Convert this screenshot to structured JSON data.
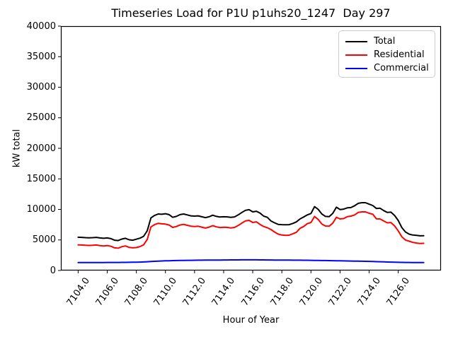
{
  "chart_data": {
    "type": "line",
    "title": "Timeseries Load for P1U p1uhs20_1247  Day 297",
    "xlabel": "Hour of Year",
    "ylabel": "kW total",
    "ylim": [
      0,
      40000
    ],
    "xlim": [
      7102.8125,
      7128.9375
    ],
    "grid": false,
    "legend_position": "upper right",
    "x_start": 7104.0,
    "x_step": 0.25,
    "x_ticks": [
      "7104.0",
      "7106.0",
      "7108.0",
      "7110.0",
      "7112.0",
      "7114.0",
      "7116.0",
      "7118.0",
      "7120.0",
      "7122.0",
      "7124.0",
      "7126.0"
    ],
    "x_tick_values": [
      7104,
      7106,
      7108,
      7110,
      7112,
      7114,
      7116,
      7118,
      7120,
      7122,
      7124,
      7126
    ],
    "y_ticks": [
      "0",
      "5000",
      "10000",
      "15000",
      "20000",
      "25000",
      "30000",
      "35000",
      "40000"
    ],
    "y_tick_values": [
      0,
      5000,
      10000,
      15000,
      20000,
      25000,
      30000,
      35000,
      40000
    ],
    "series": [
      {
        "name": "Total",
        "color": "#000000",
        "values": [
          5450,
          5420,
          5380,
          5350,
          5380,
          5420,
          5330,
          5270,
          5330,
          5210,
          4960,
          4900,
          5150,
          5270,
          5030,
          4960,
          5120,
          5300,
          5600,
          6500,
          8600,
          9000,
          9250,
          9200,
          9300,
          9150,
          8700,
          8850,
          9150,
          9250,
          9100,
          8950,
          8900,
          8950,
          8800,
          8650,
          8800,
          9050,
          8850,
          8750,
          8800,
          8780,
          8700,
          8780,
          9100,
          9500,
          9850,
          9950,
          9600,
          9700,
          9400,
          8900,
          8700,
          8100,
          7800,
          7550,
          7500,
          7480,
          7500,
          7700,
          7950,
          8440,
          8750,
          9100,
          9330,
          10450,
          10000,
          9250,
          8850,
          8820,
          9350,
          10360,
          9980,
          10050,
          10250,
          10300,
          10600,
          11000,
          11100,
          11100,
          10850,
          10640,
          10150,
          10200,
          9800,
          9500,
          9550,
          9000,
          8200,
          7000,
          6300,
          5950,
          5800,
          5750,
          5680,
          5700
        ]
      },
      {
        "name": "Residential",
        "color": "#ff0000",
        "values": [
          4200,
          4170,
          4130,
          4100,
          4130,
          4170,
          4080,
          4020,
          4080,
          3960,
          3710,
          3650,
          3900,
          4020,
          3780,
          3710,
          3760,
          3920,
          4200,
          5070,
          7130,
          7500,
          7720,
          7640,
          7600,
          7450,
          7050,
          7200,
          7450,
          7550,
          7400,
          7260,
          7200,
          7250,
          7100,
          6950,
          7100,
          7340,
          7140,
          7030,
          7080,
          7050,
          6970,
          7050,
          7360,
          7760,
          8110,
          8210,
          7860,
          7960,
          7550,
          7200,
          7000,
          6700,
          6300,
          5950,
          5800,
          5750,
          5780,
          6000,
          6250,
          6900,
          7200,
          7660,
          7850,
          8840,
          8350,
          7610,
          7280,
          7250,
          7740,
          8700,
          8440,
          8500,
          8820,
          8900,
          9100,
          9500,
          9600,
          9600,
          9360,
          9210,
          8450,
          8440,
          8100,
          7800,
          7850,
          7300,
          6500,
          5500,
          4980,
          4800,
          4600,
          4500,
          4420,
          4450
        ]
      },
      {
        "name": "Commercial",
        "color": "#0000ff",
        "values": [
          1300,
          1300,
          1300,
          1300,
          1305,
          1305,
          1310,
          1310,
          1315,
          1315,
          1320,
          1320,
          1330,
          1335,
          1340,
          1350,
          1360,
          1380,
          1400,
          1430,
          1470,
          1500,
          1530,
          1560,
          1580,
          1600,
          1615,
          1630,
          1645,
          1655,
          1665,
          1670,
          1680,
          1685,
          1690,
          1695,
          1700,
          1705,
          1710,
          1715,
          1720,
          1725,
          1730,
          1730,
          1735,
          1740,
          1745,
          1745,
          1745,
          1740,
          1735,
          1730,
          1725,
          1720,
          1715,
          1710,
          1705,
          1700,
          1695,
          1690,
          1690,
          1685,
          1680,
          1675,
          1665,
          1655,
          1645,
          1635,
          1625,
          1615,
          1605,
          1595,
          1585,
          1570,
          1560,
          1550,
          1540,
          1525,
          1515,
          1505,
          1490,
          1470,
          1450,
          1430,
          1410,
          1390,
          1370,
          1355,
          1340,
          1330,
          1320,
          1315,
          1310,
          1305,
          1300,
          1300
        ]
      }
    ]
  }
}
